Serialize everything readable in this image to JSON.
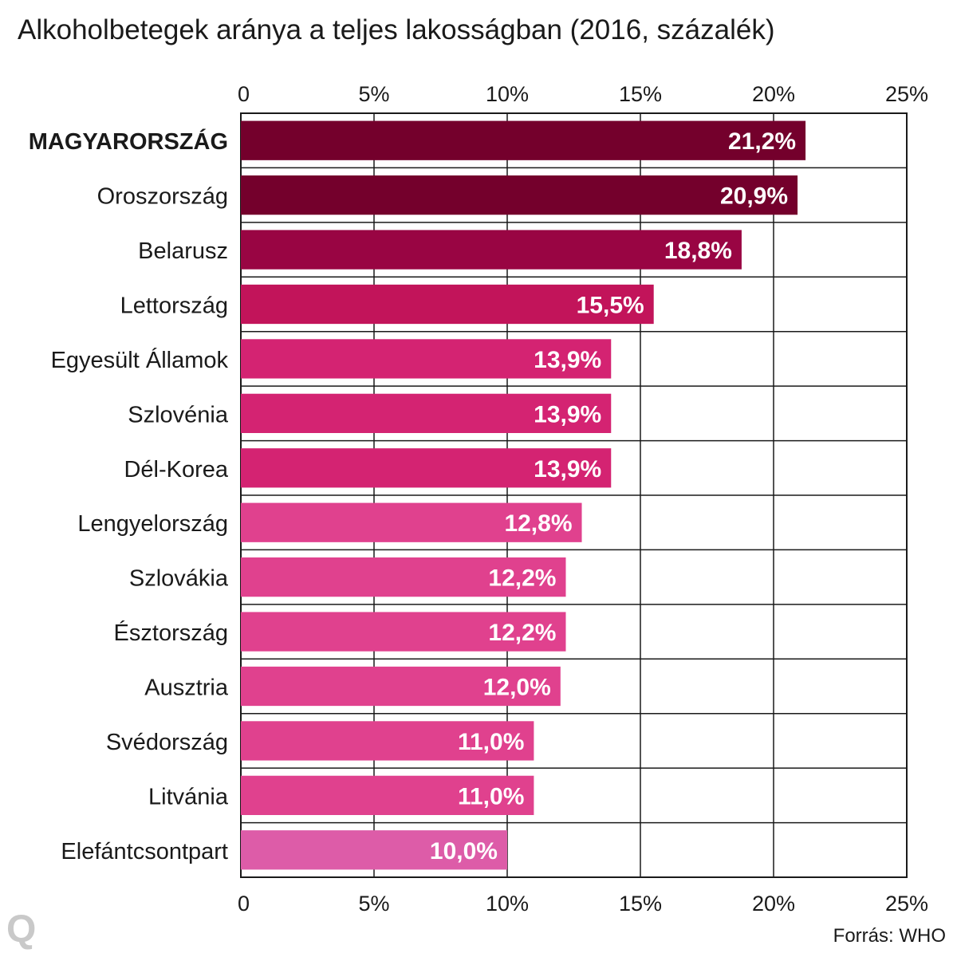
{
  "chart_data": {
    "type": "bar",
    "orientation": "horizontal",
    "title": "Alkoholbetegek aránya a teljes lakosságban (2016, százalék)",
    "xlabel": "",
    "ylabel": "",
    "xlim": [
      0,
      25
    ],
    "x_ticks": [
      0,
      5,
      10,
      15,
      20,
      25
    ],
    "x_tick_labels": [
      "0",
      "5%",
      "10%",
      "15%",
      "20%",
      "25%"
    ],
    "grid": true,
    "categories": [
      "MAGYARORSZÁG",
      "Oroszország",
      "Belarusz",
      "Lettország",
      "Egyesült Államok",
      "Szlovénia",
      "Dél-Korea",
      "Lengyelország",
      "Szlovákia",
      "Észtország",
      "Ausztria",
      "Svédország",
      "Litvánia",
      "Elefántcsontpart"
    ],
    "values": [
      21.2,
      20.9,
      18.8,
      15.5,
      13.9,
      13.9,
      13.9,
      12.8,
      12.2,
      12.2,
      12.0,
      11.0,
      11.0,
      10.0
    ],
    "value_labels": [
      "21,2%",
      "20,9%",
      "18,8%",
      "15,5%",
      "13,9%",
      "13,9%",
      "13,9%",
      "12,8%",
      "12,2%",
      "12,2%",
      "12,0%",
      "11,0%",
      "11,0%",
      "10,0%"
    ],
    "bar_colors": [
      "#74002c",
      "#74002c",
      "#990543",
      "#c2145a",
      "#d42372",
      "#d42372",
      "#d42372",
      "#e0418e",
      "#e0418e",
      "#e0418e",
      "#e0418e",
      "#e0418e",
      "#e0418e",
      "#dd5ca8"
    ],
    "highlighted_category": "MAGYARORSZÁG"
  },
  "logo_text": "Q",
  "source": "Forrás: WHO"
}
